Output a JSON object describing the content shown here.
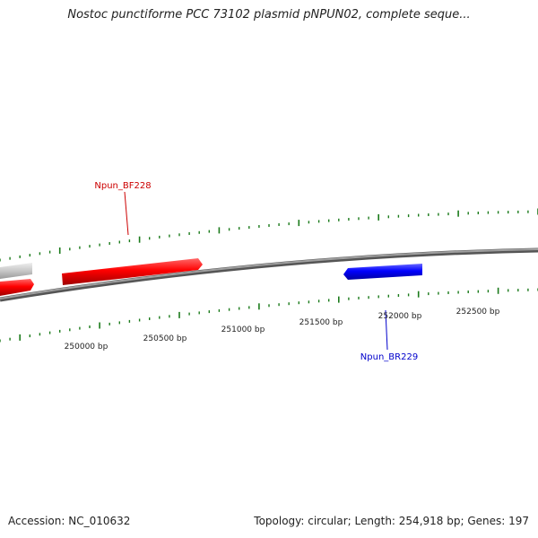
{
  "title": "Nostoc punctiforme PCC 73102 plasmid pNPUN02, complete seque...",
  "footer": {
    "accession": "Accession: NC_010632",
    "summary": "Topology: circular; Length: 254,918 bp; Genes: 197"
  },
  "colors": {
    "backbone": "#7a7a7a",
    "forward_gene": "#ee0000",
    "reverse_gene": "#0000ee",
    "other_gene": "#c4c4c4",
    "tick": "#1a7a1a",
    "forward_label": "#cc0000",
    "reverse_label": "#0000cc"
  },
  "ticks": {
    "labels": [
      "250000 bp",
      "250500 bp",
      "251000 bp",
      "251500 bp",
      "252000 bp",
      "252500 bp"
    ]
  },
  "genes": [
    {
      "name": "Npun_BF228",
      "strand": "forward"
    },
    {
      "name": "Npun_BR229",
      "strand": "reverse"
    }
  ]
}
